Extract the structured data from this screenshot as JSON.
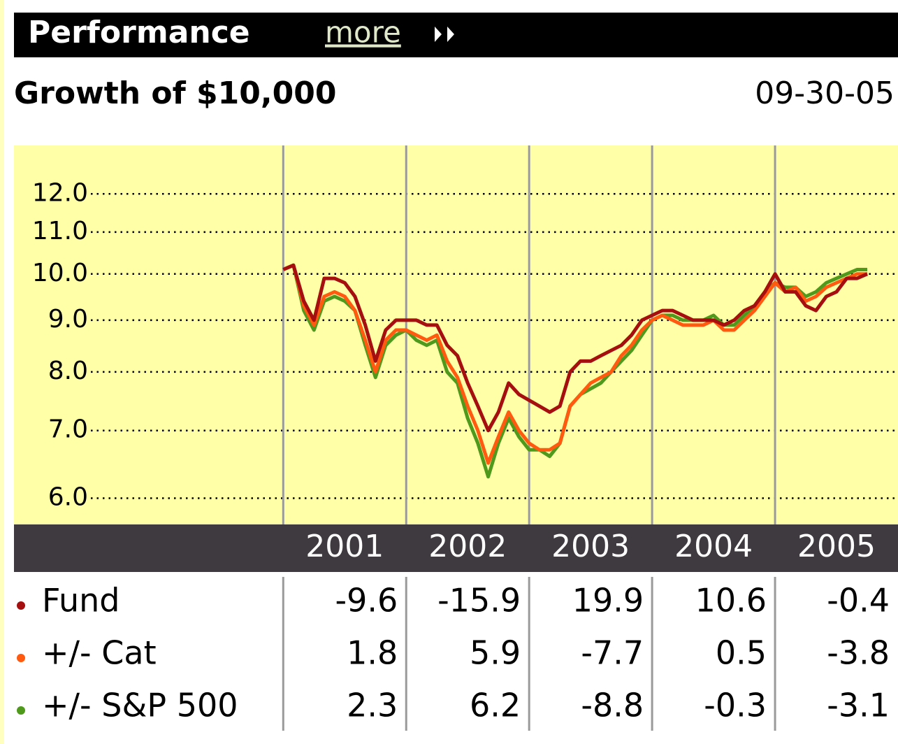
{
  "header": {
    "title": "Performance",
    "link": "more"
  },
  "chart_data": {
    "type": "line",
    "title": "Growth of $10,000",
    "date": "09-30-05",
    "log_scale": true,
    "grid": true,
    "x": [
      2001.0,
      2001.083,
      2001.167,
      2001.25,
      2001.333,
      2001.417,
      2001.5,
      2001.583,
      2001.667,
      2001.75,
      2001.833,
      2001.917,
      2002.0,
      2002.083,
      2002.167,
      2002.25,
      2002.333,
      2002.417,
      2002.5,
      2002.583,
      2002.667,
      2002.75,
      2002.833,
      2002.917,
      2003.0,
      2003.083,
      2003.167,
      2003.25,
      2003.333,
      2003.417,
      2003.5,
      2003.583,
      2003.667,
      2003.75,
      2003.833,
      2003.917,
      2004.0,
      2004.083,
      2004.167,
      2004.25,
      2004.333,
      2004.417,
      2004.5,
      2004.583,
      2004.667,
      2004.75,
      2004.833,
      2004.917,
      2005.0,
      2005.083,
      2005.167,
      2005.25,
      2005.333,
      2005.417,
      2005.5,
      2005.583,
      2005.667,
      2005.75
    ],
    "xlim": [
      1998.81,
      2006
    ],
    "xticks": [
      {
        "value": 2001,
        "label": "2001"
      },
      {
        "value": 2002,
        "label": "2002"
      },
      {
        "value": 2003,
        "label": "2003"
      },
      {
        "value": 2004,
        "label": "2004"
      },
      {
        "value": 2005,
        "label": "2005"
      }
    ],
    "ylim": [
      5.67,
      13.4
    ],
    "yticks": [
      {
        "value": 6,
        "label": "6.0"
      },
      {
        "value": 7,
        "label": "7.0"
      },
      {
        "value": 8,
        "label": "8.0"
      },
      {
        "value": 9,
        "label": "9.0"
      },
      {
        "value": 10,
        "label": "10.0"
      },
      {
        "value": 11,
        "label": "11.0"
      },
      {
        "value": 12,
        "label": "12.0"
      }
    ],
    "series": [
      {
        "name": "+/- S&P 500",
        "color": "#4f9a1c",
        "values": [
          10.1,
          10.2,
          9.2,
          8.8,
          9.4,
          9.5,
          9.4,
          9.2,
          8.5,
          7.9,
          8.5,
          8.7,
          8.8,
          8.6,
          8.5,
          8.6,
          8.0,
          7.8,
          7.2,
          6.8,
          6.3,
          6.8,
          7.2,
          6.9,
          6.7,
          6.7,
          6.6,
          6.8,
          7.4,
          7.6,
          7.7,
          7.8,
          8.0,
          8.2,
          8.4,
          8.7,
          9.0,
          9.1,
          9.1,
          9.0,
          9.0,
          9.0,
          9.1,
          8.9,
          8.9,
          9.1,
          9.3,
          9.6,
          9.8,
          9.7,
          9.7,
          9.5,
          9.6,
          9.8,
          9.9,
          10.0,
          10.1,
          10.1
        ]
      },
      {
        "name": "+/- Cat",
        "color": "#ff5a10",
        "values": [
          10.1,
          10.2,
          9.3,
          8.9,
          9.5,
          9.6,
          9.5,
          9.2,
          8.6,
          8.0,
          8.6,
          8.8,
          8.8,
          8.7,
          8.6,
          8.7,
          8.2,
          7.9,
          7.4,
          7.0,
          6.5,
          6.9,
          7.3,
          7.0,
          6.8,
          6.7,
          6.7,
          6.8,
          7.4,
          7.6,
          7.8,
          7.9,
          8.0,
          8.3,
          8.5,
          8.8,
          9.0,
          9.1,
          9.0,
          8.9,
          8.9,
          8.9,
          9.0,
          8.8,
          8.8,
          9.0,
          9.2,
          9.5,
          9.8,
          9.6,
          9.7,
          9.4,
          9.5,
          9.7,
          9.8,
          9.9,
          10.0,
          10.0
        ]
      },
      {
        "name": "Fund",
        "color": "#a50f0f",
        "values": [
          10.1,
          10.2,
          9.4,
          9.0,
          9.9,
          9.9,
          9.8,
          9.5,
          8.9,
          8.2,
          8.8,
          9.0,
          9.0,
          9.0,
          8.9,
          8.9,
          8.5,
          8.3,
          7.8,
          7.4,
          7.0,
          7.3,
          7.8,
          7.6,
          7.5,
          7.4,
          7.3,
          7.4,
          8.0,
          8.2,
          8.2,
          8.3,
          8.4,
          8.5,
          8.7,
          9.0,
          9.1,
          9.2,
          9.2,
          9.1,
          9.0,
          9.0,
          9.0,
          8.9,
          9.0,
          9.2,
          9.3,
          9.6,
          10.0,
          9.6,
          9.6,
          9.3,
          9.2,
          9.5,
          9.6,
          9.9,
          9.9,
          10.0
        ]
      }
    ],
    "table": {
      "rows": [
        {
          "name": "Fund",
          "color": "#a50f0f",
          "values": [
            -9.6,
            -15.9,
            19.9,
            10.6,
            -0.4
          ]
        },
        {
          "name": "+/- Cat",
          "color": "#ff5a10",
          "values": [
            1.8,
            5.9,
            -7.7,
            0.5,
            -3.8
          ]
        },
        {
          "name": "+/- S&P 500",
          "color": "#4f9a1c",
          "values": [
            2.3,
            6.2,
            -8.8,
            -0.3,
            -3.1
          ]
        }
      ]
    }
  }
}
